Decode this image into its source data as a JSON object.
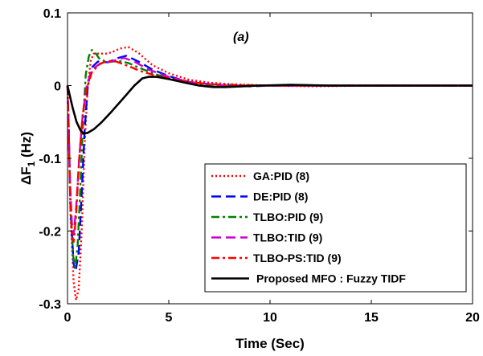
{
  "chart_data": {
    "type": "line",
    "xlabel": "Time (Sec)",
    "ylabel_main": "ΔF",
    "ylabel_sub": "1",
    "ylabel_unit": " (Hz)",
    "annotation": "(a)",
    "xlim": [
      0,
      20
    ],
    "ylim": [
      -0.3,
      0.1
    ],
    "xticks": [
      0,
      5,
      10,
      15,
      20
    ],
    "xtick_labels": [
      "0",
      "5",
      "10",
      "15",
      "20"
    ],
    "yticks": [
      0.1,
      0,
      -0.1,
      -0.2,
      -0.3
    ],
    "ytick_labels": [
      "0.1",
      "0",
      "-0.1",
      "-0.2",
      "-0.3"
    ],
    "grid": false,
    "legend_position": "lower-right",
    "series": [
      {
        "name": "GA:PID (8)",
        "color": "#ff0000",
        "dash": "dotted",
        "points": [
          [
            0,
            0
          ],
          [
            0.05,
            -0.05
          ],
          [
            0.15,
            -0.18
          ],
          [
            0.3,
            -0.27
          ],
          [
            0.42,
            -0.295
          ],
          [
            0.55,
            -0.28
          ],
          [
            0.7,
            -0.2
          ],
          [
            0.85,
            -0.08
          ],
          [
            1.0,
            0.0
          ],
          [
            1.15,
            0.035
          ],
          [
            1.3,
            0.044
          ],
          [
            1.6,
            0.044
          ],
          [
            1.9,
            0.044
          ],
          [
            2.2,
            0.046
          ],
          [
            2.6,
            0.051
          ],
          [
            3.0,
            0.053
          ],
          [
            3.5,
            0.045
          ],
          [
            4.2,
            0.028
          ],
          [
            5.0,
            0.017
          ],
          [
            6.0,
            0.008
          ],
          [
            7.0,
            0.004
          ],
          [
            8.0,
            0.002
          ],
          [
            9.0,
            0.001
          ],
          [
            10.0,
            0.0
          ],
          [
            12.0,
            -0.001
          ],
          [
            15.0,
            0.0
          ],
          [
            20.0,
            0.0
          ]
        ]
      },
      {
        "name": "DE:PID (8)",
        "color": "#0000ff",
        "dash": "dashed",
        "points": [
          [
            0,
            0
          ],
          [
            0.05,
            -0.05
          ],
          [
            0.15,
            -0.17
          ],
          [
            0.3,
            -0.245
          ],
          [
            0.4,
            -0.255
          ],
          [
            0.55,
            -0.23
          ],
          [
            0.7,
            -0.15
          ],
          [
            0.85,
            -0.06
          ],
          [
            1.0,
            0.0
          ],
          [
            1.2,
            0.025
          ],
          [
            1.5,
            0.033
          ],
          [
            2.0,
            0.032
          ],
          [
            2.5,
            0.038
          ],
          [
            2.9,
            0.041
          ],
          [
            3.5,
            0.033
          ],
          [
            4.2,
            0.022
          ],
          [
            5.0,
            0.013
          ],
          [
            6.0,
            0.005
          ],
          [
            7.0,
            0.002
          ],
          [
            8.0,
            0.0
          ],
          [
            9.0,
            -0.001
          ],
          [
            10.0,
            0.0
          ],
          [
            20.0,
            0.0
          ]
        ]
      },
      {
        "name": "TLBO:PID (9)",
        "color": "#008000",
        "dash": "dashdot",
        "points": [
          [
            0,
            0
          ],
          [
            0.05,
            -0.05
          ],
          [
            0.15,
            -0.17
          ],
          [
            0.28,
            -0.235
          ],
          [
            0.38,
            -0.25
          ],
          [
            0.5,
            -0.22
          ],
          [
            0.62,
            -0.15
          ],
          [
            0.75,
            -0.06
          ],
          [
            0.9,
            0.015
          ],
          [
            1.05,
            0.04
          ],
          [
            1.2,
            0.049
          ],
          [
            1.35,
            0.046
          ],
          [
            1.6,
            0.036
          ],
          [
            2.0,
            0.032
          ],
          [
            2.5,
            0.034
          ],
          [
            3.0,
            0.031
          ],
          [
            3.5,
            0.025
          ],
          [
            4.2,
            0.017
          ],
          [
            5.0,
            0.01
          ],
          [
            6.0,
            0.004
          ],
          [
            7.0,
            0.001
          ],
          [
            8.0,
            -0.001
          ],
          [
            9.0,
            0.0
          ],
          [
            20.0,
            0.0
          ]
        ]
      },
      {
        "name": "TLBO:TID (9)",
        "color": "#cc00cc",
        "dash": "dashed",
        "points": [
          [
            0,
            0
          ],
          [
            0.05,
            -0.05
          ],
          [
            0.12,
            -0.13
          ],
          [
            0.22,
            -0.19
          ],
          [
            0.3,
            -0.205
          ],
          [
            0.42,
            -0.17
          ],
          [
            0.58,
            -0.1
          ],
          [
            0.75,
            -0.04
          ],
          [
            0.95,
            0.0
          ],
          [
            1.2,
            0.022
          ],
          [
            1.6,
            0.03
          ],
          [
            2.0,
            0.032
          ],
          [
            2.5,
            0.036
          ],
          [
            2.8,
            0.038
          ],
          [
            3.3,
            0.033
          ],
          [
            4.0,
            0.022
          ],
          [
            5.0,
            0.012
          ],
          [
            6.0,
            0.005
          ],
          [
            7.0,
            0.002
          ],
          [
            8.0,
            0.0
          ],
          [
            10.0,
            0.0
          ],
          [
            20.0,
            0.0
          ]
        ]
      },
      {
        "name": "TLBO-PS:TID (9)",
        "color": "#ff0000",
        "dash": "dashdot",
        "points": [
          [
            0,
            0
          ],
          [
            0.05,
            -0.05
          ],
          [
            0.12,
            -0.14
          ],
          [
            0.22,
            -0.205
          ],
          [
            0.3,
            -0.215
          ],
          [
            0.42,
            -0.18
          ],
          [
            0.58,
            -0.1
          ],
          [
            0.75,
            -0.04
          ],
          [
            0.95,
            -0.005
          ],
          [
            1.2,
            0.018
          ],
          [
            1.6,
            0.03
          ],
          [
            2.0,
            0.034
          ],
          [
            2.4,
            0.033
          ],
          [
            3.0,
            0.027
          ],
          [
            3.6,
            0.02
          ],
          [
            4.2,
            0.015
          ],
          [
            5.0,
            0.01
          ],
          [
            6.0,
            0.005
          ],
          [
            7.0,
            0.002
          ],
          [
            8.0,
            0.001
          ],
          [
            10.0,
            0.0
          ],
          [
            20.0,
            0.0
          ]
        ]
      },
      {
        "name": "Proposed MFO : Fuzzy TIDF",
        "color": "#000000",
        "dash": "solid",
        "points": [
          [
            0,
            0
          ],
          [
            0.1,
            -0.012
          ],
          [
            0.25,
            -0.03
          ],
          [
            0.45,
            -0.05
          ],
          [
            0.65,
            -0.062
          ],
          [
            0.8,
            -0.066
          ],
          [
            1.0,
            -0.065
          ],
          [
            1.3,
            -0.06
          ],
          [
            1.7,
            -0.05
          ],
          [
            2.2,
            -0.035
          ],
          [
            2.8,
            -0.016
          ],
          [
            3.3,
            0.0
          ],
          [
            3.7,
            0.01
          ],
          [
            4.0,
            0.012
          ],
          [
            4.4,
            0.012
          ],
          [
            5.0,
            0.009
          ],
          [
            5.8,
            0.004
          ],
          [
            6.5,
            0.0
          ],
          [
            7.2,
            -0.002
          ],
          [
            7.8,
            -0.002
          ],
          [
            8.6,
            -0.001
          ],
          [
            9.5,
            0.0
          ],
          [
            11.0,
            0.001
          ],
          [
            13.0,
            0.0
          ],
          [
            20.0,
            0.0
          ]
        ]
      }
    ]
  }
}
